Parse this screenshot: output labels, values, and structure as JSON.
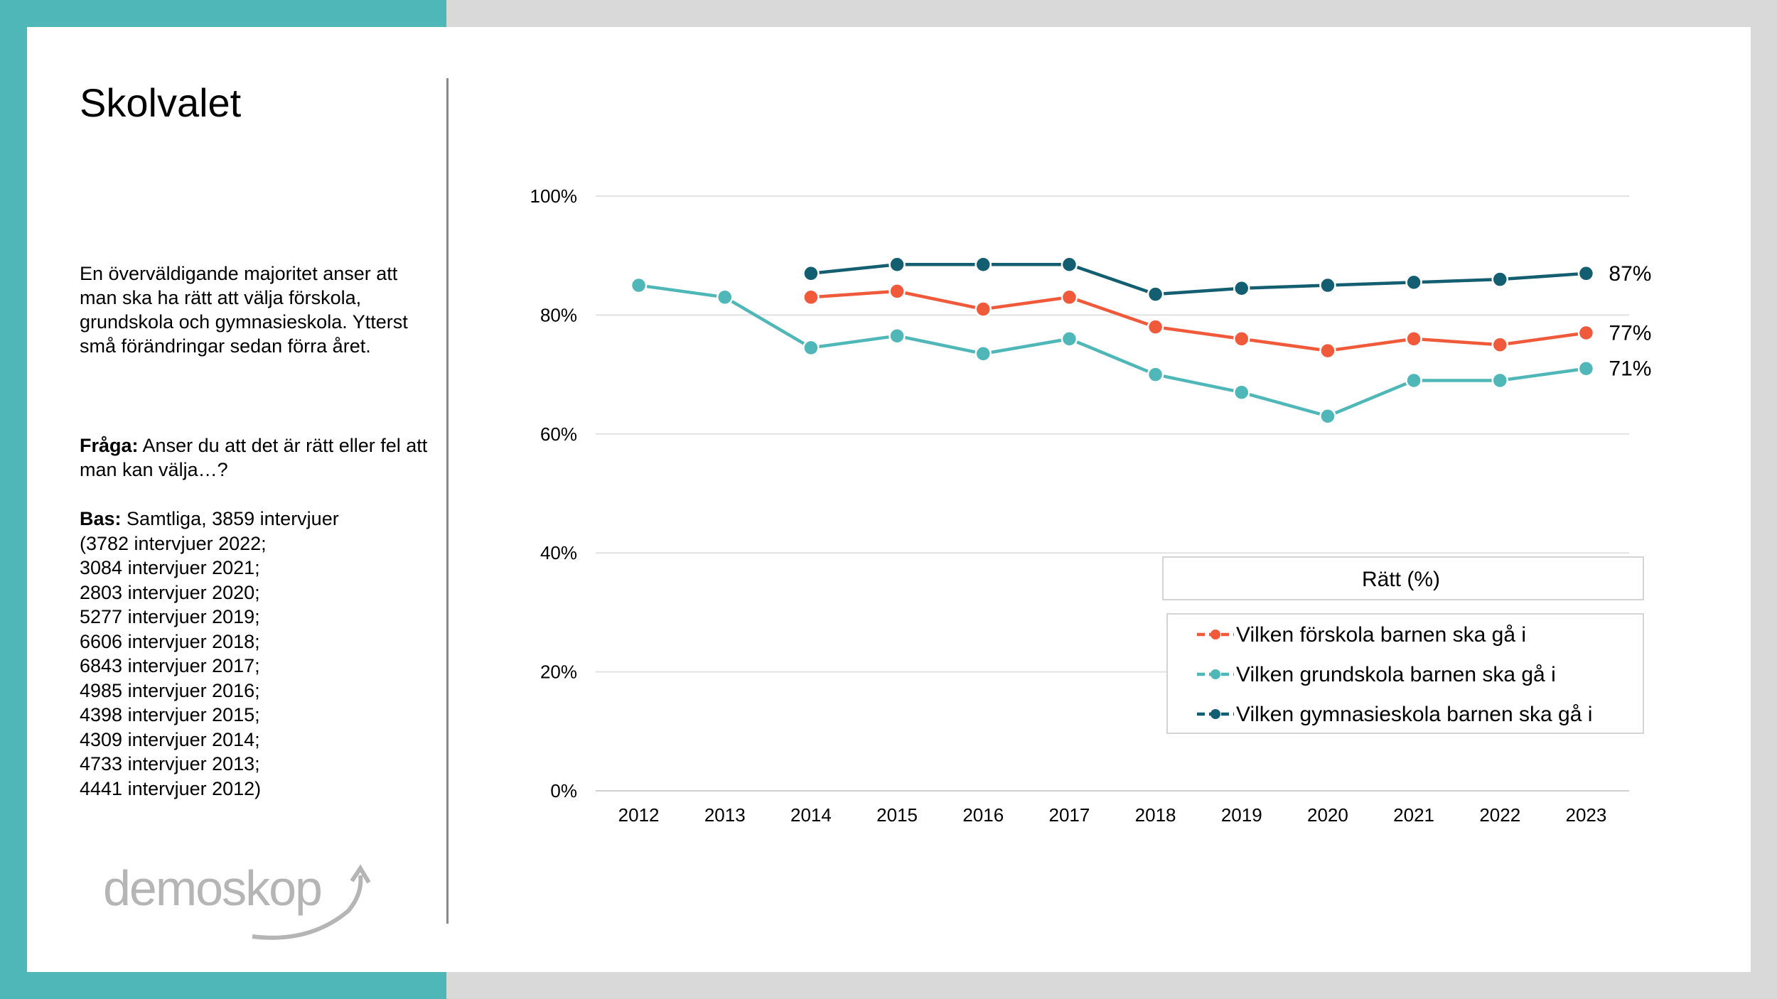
{
  "slide": {
    "title": "Skolvalet",
    "lead": "En överväldigande majoritet anser att man ska ha rätt att välja förskola, grundskola och gymnasieskola. Ytterst små förändringar sedan förra året.",
    "question_label": "Fråga:",
    "question_text": "Anser du att det är rätt eller fel att man kan välja…?",
    "base_label": "Bas:",
    "base_lines": [
      "Samtliga, 3859 intervjuer",
      "(3782 intervjuer 2022;",
      "3084 intervjuer 2021;",
      "2803 intervjuer 2020;",
      "5277 intervjuer 2019;",
      "6606 intervjuer 2018;",
      "6843 intervjuer 2017;",
      "4985 intervjuer 2016;",
      "4398 intervjuer 2015;",
      "4309 intervjuer 2014;",
      "4733 intervjuer 2013;",
      "4441 intervjuer 2012)"
    ],
    "logo_text": "demoskop"
  },
  "colors": {
    "teal_band": "#4fb7b8",
    "forskola": "#f05a3a",
    "grundskola": "#4fb7b8",
    "gymnasieskola": "#135e70"
  },
  "chart_data": {
    "type": "line",
    "x": [
      "2012",
      "2013",
      "2014",
      "2015",
      "2016",
      "2017",
      "2018",
      "2019",
      "2020",
      "2021",
      "2022",
      "2023"
    ],
    "ylim": [
      0,
      100
    ],
    "yticks": [
      0,
      20,
      40,
      60,
      80,
      100
    ],
    "ytick_labels": [
      "0%",
      "20%",
      "40%",
      "60%",
      "80%",
      "100%"
    ],
    "legend_title": "Rätt (%)",
    "legend_position": "bottom-right",
    "grid": true,
    "series": [
      {
        "key": "forskola",
        "name": "Vilken förskola barnen ska gå i",
        "color": "#f05a3a",
        "values": [
          null,
          null,
          83,
          84,
          81,
          83,
          78,
          76,
          74,
          76,
          75,
          77
        ],
        "end_label": "77%"
      },
      {
        "key": "grundskola",
        "name": "Vilken grundskola barnen ska gå i",
        "color": "#4fb7b8",
        "values": [
          85,
          83,
          74.5,
          76.5,
          73.5,
          76,
          70,
          67,
          63,
          69,
          69,
          71
        ],
        "end_label": "71%"
      },
      {
        "key": "gymnasieskola",
        "name": "Vilken gymnasieskola barnen ska gå i",
        "color": "#135e70",
        "values": [
          null,
          null,
          87,
          88.5,
          88.5,
          88.5,
          83.5,
          84.5,
          85,
          85.5,
          86,
          87
        ],
        "end_label": "87%"
      }
    ]
  }
}
